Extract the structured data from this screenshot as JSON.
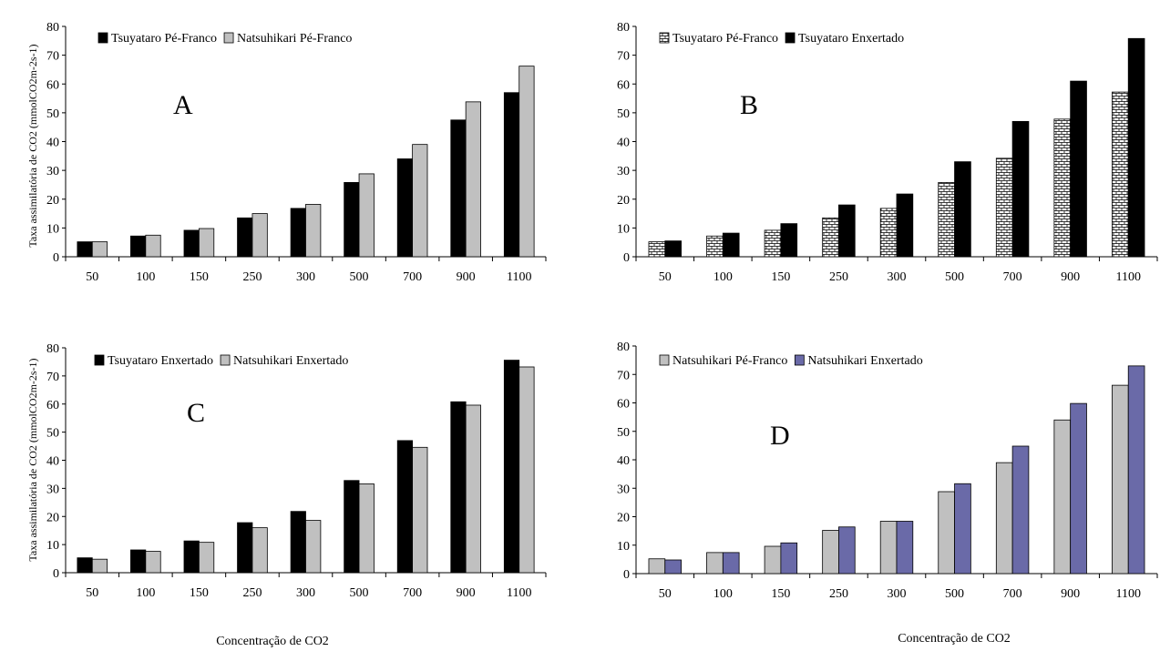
{
  "colors": {
    "black": "#000000",
    "gray": "#c0c0c0",
    "purple": "#6a6aa8",
    "white": "#ffffff"
  },
  "chart_data": [
    {
      "type": "bar",
      "panel_label": "A",
      "categories": [
        "50",
        "100",
        "150",
        "250",
        "300",
        "500",
        "700",
        "900",
        "1100"
      ],
      "ylim": [
        0,
        80
      ],
      "yticks": [
        "0",
        "10",
        "20",
        "30",
        "40",
        "50",
        "60",
        "70",
        "80"
      ],
      "ylabel": "Taxa assimilatória de CO2 (mmolCO2m-2s-1)",
      "xlabel": "",
      "grid": false,
      "legend_position": "top-left",
      "series": [
        {
          "name": "Tsuyataro Pé-Franco",
          "color": "#000000",
          "pattern": "solid",
          "values": [
            5.2,
            7.2,
            9.2,
            13.5,
            16.8,
            25.8,
            34.0,
            47.5,
            57.0
          ]
        },
        {
          "name": "Natsuhikari Pé-Franco",
          "color": "#c0c0c0",
          "pattern": "solid",
          "values": [
            5.2,
            7.5,
            9.8,
            15.0,
            18.2,
            28.8,
            39.0,
            53.8,
            66.2
          ]
        }
      ]
    },
    {
      "type": "bar",
      "panel_label": "B",
      "categories": [
        "50",
        "100",
        "150",
        "250",
        "300",
        "500",
        "700",
        "900",
        "1100"
      ],
      "ylim": [
        0,
        80
      ],
      "yticks": [
        "0",
        "10",
        "20",
        "30",
        "40",
        "50",
        "60",
        "70",
        "80"
      ],
      "ylabel": "",
      "xlabel": "",
      "grid": false,
      "legend_position": "top-left",
      "series": [
        {
          "name": "Tsuyataro Pé-Franco",
          "color": "#ffffff",
          "pattern": "brick",
          "values": [
            5.2,
            7.2,
            9.2,
            13.5,
            16.8,
            25.8,
            34.2,
            47.8,
            57.2
          ]
        },
        {
          "name": "Tsuyataro Enxertado",
          "color": "#000000",
          "pattern": "solid",
          "values": [
            5.5,
            8.2,
            11.5,
            18.0,
            21.8,
            33.0,
            47.0,
            61.0,
            75.8
          ]
        }
      ]
    },
    {
      "type": "bar",
      "panel_label": "C",
      "categories": [
        "50",
        "100",
        "150",
        "250",
        "300",
        "500",
        "700",
        "900",
        "1100"
      ],
      "ylim": [
        0,
        80
      ],
      "yticks": [
        "0",
        "10",
        "20",
        "30",
        "40",
        "50",
        "60",
        "70",
        "80"
      ],
      "ylabel": "Taxa assimilatória de CO2 (mmolCO2m-2s-1)",
      "xlabel": "Concentração de CO2",
      "grid": false,
      "legend_position": "top-left",
      "series": [
        {
          "name": "Tsuyataro Enxertado",
          "color": "#000000",
          "pattern": "solid",
          "values": [
            5.3,
            8.1,
            11.3,
            17.8,
            21.8,
            32.8,
            47.0,
            60.8,
            75.6
          ]
        },
        {
          "name": "Natsuhikari Enxertado",
          "color": "#c0c0c0",
          "pattern": "solid",
          "values": [
            4.8,
            7.6,
            10.8,
            16.0,
            18.6,
            31.6,
            44.6,
            59.6,
            73.2
          ]
        }
      ]
    },
    {
      "type": "bar",
      "panel_label": "D",
      "categories": [
        "50",
        "100",
        "150",
        "250",
        "300",
        "500",
        "700",
        "900",
        "1100"
      ],
      "ylim": [
        0,
        80
      ],
      "yticks": [
        "0",
        "10",
        "20",
        "30",
        "40",
        "50",
        "60",
        "70",
        "80"
      ],
      "ylabel": "",
      "xlabel": "Concentração de CO2",
      "grid": false,
      "legend_position": "top-left",
      "series": [
        {
          "name": "Natsuhikari Pé-Franco",
          "color": "#c0c0c0",
          "pattern": "solid",
          "values": [
            5.2,
            7.4,
            9.6,
            15.2,
            18.4,
            28.8,
            39.0,
            54.0,
            66.2
          ]
        },
        {
          "name": "Natsuhikari Enxertado",
          "color": "#6a6aa8",
          "pattern": "solid",
          "values": [
            4.8,
            7.4,
            10.8,
            16.4,
            18.4,
            31.6,
            44.8,
            59.8,
            73.0
          ]
        }
      ]
    }
  ]
}
